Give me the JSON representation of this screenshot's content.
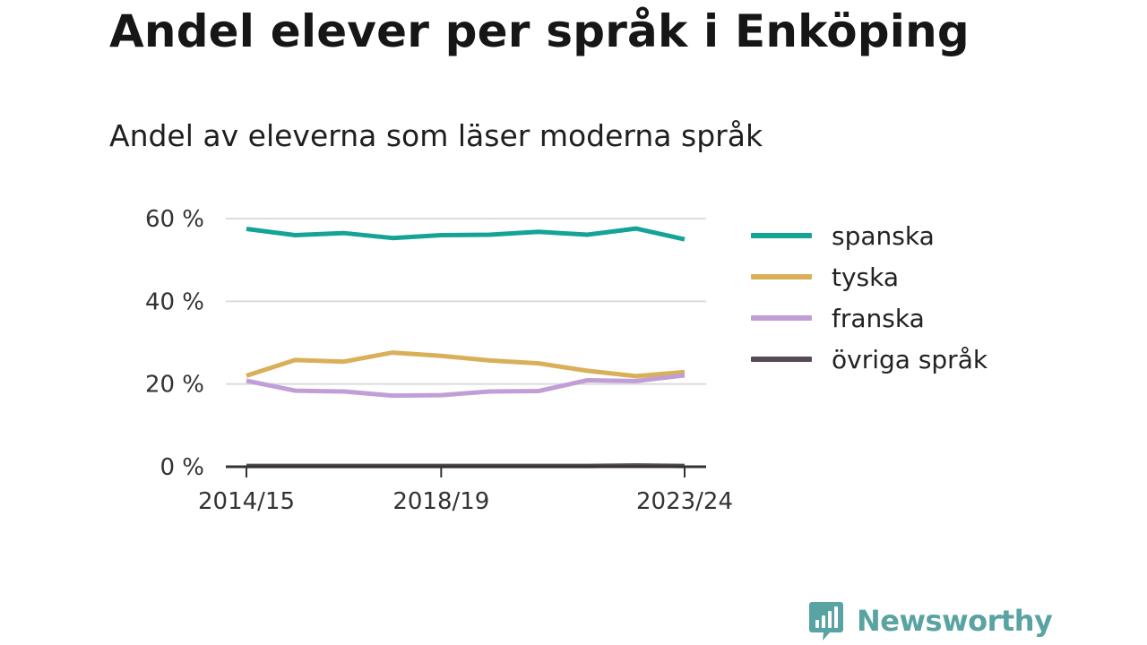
{
  "header": {
    "title": "Andel elever per språk i Enköping",
    "subtitle": "Andel av eleverna som läser moderna språk"
  },
  "brand": {
    "name": "Newsworthy",
    "icon": "bar-chart-speech-bubble-icon",
    "color": "#5aa3a3"
  },
  "chart_data": {
    "type": "line",
    "title": "",
    "xlabel": "",
    "ylabel": "",
    "x": [
      "2014/15",
      "2015/16",
      "2016/17",
      "2017/18",
      "2018/19",
      "2019/20",
      "2020/21",
      "2021/22",
      "2022/23",
      "2023/24"
    ],
    "x_ticks": [
      "2014/15",
      "2018/19",
      "2023/24"
    ],
    "y_ticks": [
      "0 %",
      "20 %",
      "40 %",
      "60 %"
    ],
    "y_tick_values": [
      0,
      20,
      40,
      60
    ],
    "ylim": [
      0,
      60
    ],
    "y_unit": "%",
    "grid": true,
    "legend_position": "right",
    "series": [
      {
        "name": "spanska",
        "color": "#14a396",
        "values": [
          57.5,
          56.0,
          56.5,
          55.3,
          56.0,
          56.1,
          56.8,
          56.1,
          57.6,
          55.0
        ]
      },
      {
        "name": "tyska",
        "color": "#d9b059",
        "values": [
          22.0,
          25.8,
          25.4,
          27.6,
          26.8,
          25.7,
          25.0,
          23.2,
          21.9,
          22.9
        ]
      },
      {
        "name": "franska",
        "color": "#c19fd6",
        "values": [
          20.8,
          18.4,
          18.2,
          17.2,
          17.3,
          18.2,
          18.3,
          20.9,
          20.7,
          22.1
        ]
      },
      {
        "name": "övriga språk",
        "color": "#574b58",
        "values": [
          0.2,
          0.2,
          0.2,
          0.2,
          0.2,
          0.2,
          0.2,
          0.2,
          0.3,
          0.2
        ]
      }
    ]
  }
}
